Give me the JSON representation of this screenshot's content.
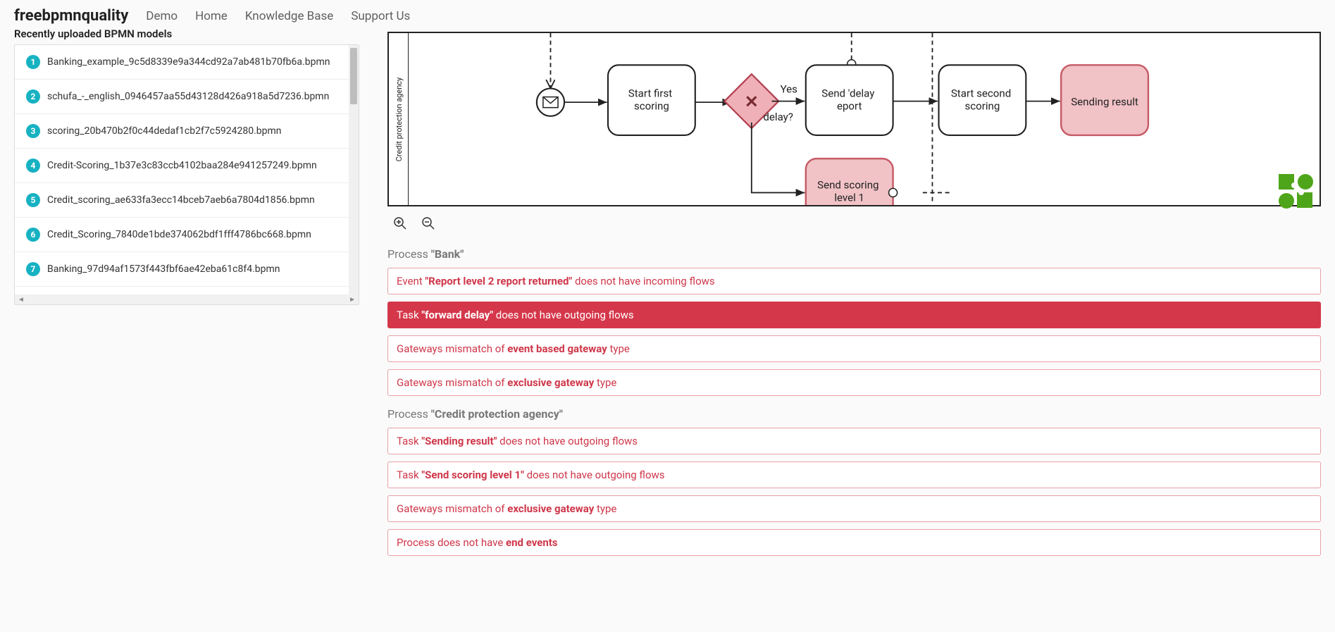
{
  "nav": {
    "brand": "freebpmnquality",
    "links": [
      "Demo",
      "Home",
      "Knowledge Base",
      "Support Us"
    ]
  },
  "sidebar": {
    "header": "Recently uploaded BPMN models",
    "items": [
      {
        "n": "1",
        "name": "Banking_example_9c5d8339e9a344cd92a7ab481b70fb6a.bpmn"
      },
      {
        "n": "2",
        "name": "schufa_-_english_0946457aa55d43128d426a918a5d7236.bpmn"
      },
      {
        "n": "3",
        "name": "scoring_20b470b2f0c44dedaf1cb2f7c5924280.bpmn"
      },
      {
        "n": "4",
        "name": "Credit-Scoring_1b37e3c83ccb4102baa284e941257249.bpmn"
      },
      {
        "n": "5",
        "name": "Credit_scoring_ae633fa3ecc14bceb7aeb6a7804d1856.bpmn"
      },
      {
        "n": "6",
        "name": "Credit_Scoring_7840de1bde374062bdf1fff4786bc668.bpmn"
      },
      {
        "n": "7",
        "name": "Banking_97d94af1573f443fbf6ae42eba61c8f4.bpmn"
      }
    ]
  },
  "diagram": {
    "lane_label": "Credit protection agency",
    "gateway_label_top": "Yes",
    "gateway_label_bottom": "delay?",
    "tasks": {
      "start_first": "Start first scoring",
      "send_delay": "Send 'delay eport",
      "start_second": "Start second scoring",
      "sending_result": "Sending result",
      "send_level1": "Send scoring level 1"
    },
    "colors": {
      "task_bg": "#ffffff",
      "task_stroke": "#222222",
      "error_fill": "#f1c2c6",
      "error_stroke": "#c55a66",
      "gateway_fill": "#efb1b7",
      "gateway_stroke": "#b3404f"
    }
  },
  "sections": [
    {
      "title_prefix": "Process ",
      "title_bold": "\"Bank\"",
      "issues": [
        {
          "active": false,
          "html": "Event <b>\"Report level 2 report returned\"</b> does not have incoming flows"
        },
        {
          "active": true,
          "html": "Task <b>\"forward delay\"</b> does not have outgoing flows"
        },
        {
          "active": false,
          "html": "Gateways mismatch of <b>event based gateway</b> type"
        },
        {
          "active": false,
          "html": "Gateways mismatch of <b>exclusive gateway</b> type"
        }
      ]
    },
    {
      "title_prefix": "Process ",
      "title_bold": "\"Credit protection agency\"",
      "issues": [
        {
          "active": false,
          "html": "Task <b>\"Sending result\"</b> does not have outgoing flows"
        },
        {
          "active": false,
          "html": "Task <b>\"Send scoring level 1\"</b> does not have outgoing flows"
        },
        {
          "active": false,
          "html": "Gateways mismatch of <b>exclusive gateway</b> type"
        },
        {
          "active": false,
          "html": "Process does not have <b>end events</b>"
        }
      ]
    }
  ],
  "corner_logo_color": "#4fa51a"
}
